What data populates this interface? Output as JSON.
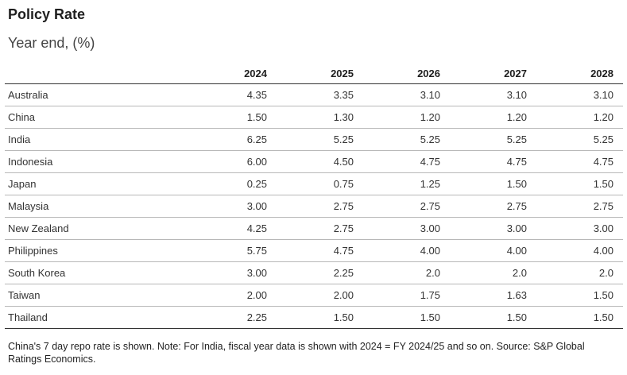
{
  "title": "Policy Rate",
  "subtitle": "Year end, (%)",
  "table": {
    "columns": [
      "2024",
      "2025",
      "2026",
      "2027",
      "2028"
    ],
    "rows": [
      {
        "country": "Australia",
        "values": [
          "4.35",
          "3.35",
          "3.10",
          "3.10",
          "3.10"
        ]
      },
      {
        "country": "China",
        "values": [
          "1.50",
          "1.30",
          "1.20",
          "1.20",
          "1.20"
        ]
      },
      {
        "country": "India",
        "values": [
          "6.25",
          "5.25",
          "5.25",
          "5.25",
          "5.25"
        ]
      },
      {
        "country": "Indonesia",
        "values": [
          "6.00",
          "4.50",
          "4.75",
          "4.75",
          "4.75"
        ]
      },
      {
        "country": "Japan",
        "values": [
          "0.25",
          "0.75",
          "1.25",
          "1.50",
          "1.50"
        ]
      },
      {
        "country": "Malaysia",
        "values": [
          "3.00",
          "2.75",
          "2.75",
          "2.75",
          "2.75"
        ]
      },
      {
        "country": "New Zealand",
        "values": [
          "4.25",
          "2.75",
          "3.00",
          "3.00",
          "3.00"
        ]
      },
      {
        "country": "Philippines",
        "values": [
          "5.75",
          "4.75",
          "4.00",
          "4.00",
          "4.00"
        ]
      },
      {
        "country": "South Korea",
        "values": [
          "3.00",
          "2.25",
          "2.0",
          "2.0",
          "2.0"
        ]
      },
      {
        "country": "Taiwan",
        "values": [
          "2.00",
          "2.00",
          "1.75",
          "1.63",
          "1.50"
        ]
      },
      {
        "country": "Thailand",
        "values": [
          "2.25",
          "1.50",
          "1.50",
          "1.50",
          "1.50"
        ]
      }
    ]
  },
  "note": "China's 7 day repo rate is shown. Note: For India, fiscal year data is shown with 2024 = FY 2024/25 and so on. Source: S&P Global Ratings Economics."
}
